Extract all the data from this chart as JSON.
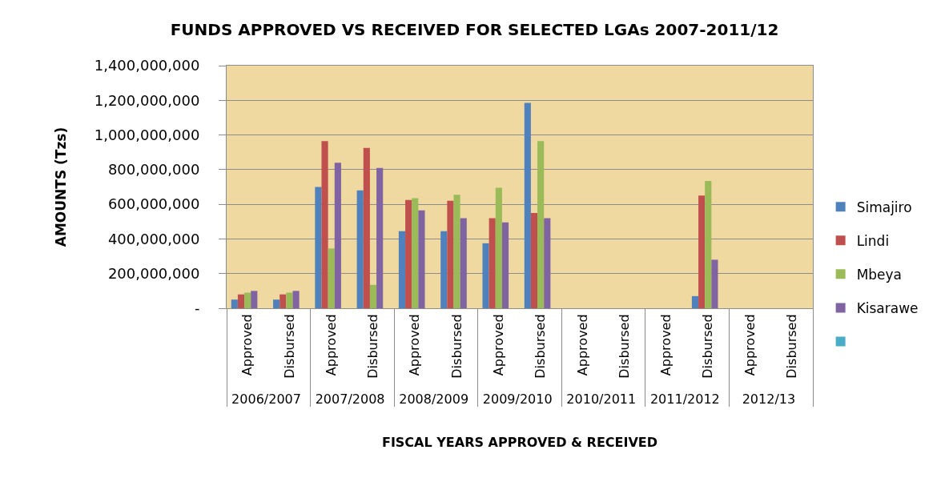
{
  "chart_data": {
    "type": "bar",
    "title": "FUNDS APPROVED VS RECEIVED FOR SELECTED LGAs 2007-2011/12",
    "xlabel": "FISCAL YEARS APPROVED & RECEIVED",
    "ylabel": "AMOUNTS (Tzs)",
    "categories": [
      "Approved",
      "Disbursed",
      "Approved",
      "Disbursed",
      "Approved",
      "Disbursed",
      "Approved",
      "Disbursed",
      "Approved",
      "Disbursed",
      "Approved",
      "Disbursed",
      "Approved",
      "Disbursed"
    ],
    "annotations": [
      "2006/2007",
      "2007/2008",
      "2008/2009",
      "2009/2010",
      "2010/2011",
      "2011/2012",
      "2012/13"
    ],
    "series": [
      {
        "name": "Simajiro",
        "color": "#4f81bd",
        "values": [
          50000000,
          50000000,
          700000000,
          680000000,
          445000000,
          445000000,
          375000000,
          1185000000,
          null,
          null,
          null,
          70000000,
          null,
          null
        ]
      },
      {
        "name": "Lindi",
        "color": "#c0504d",
        "values": [
          80000000,
          80000000,
          965000000,
          925000000,
          625000000,
          620000000,
          520000000,
          550000000,
          null,
          null,
          null,
          650000000,
          null,
          null
        ]
      },
      {
        "name": "Mbeya",
        "color": "#9bbb59",
        "values": [
          90000000,
          90000000,
          345000000,
          135000000,
          635000000,
          655000000,
          695000000,
          965000000,
          null,
          null,
          null,
          735000000,
          null,
          null
        ]
      },
      {
        "name": "Kisarawe",
        "color": "#8064a2",
        "values": [
          100000000,
          100000000,
          840000000,
          810000000,
          565000000,
          520000000,
          495000000,
          520000000,
          null,
          null,
          null,
          280000000,
          null,
          null
        ]
      },
      {
        "color": "#4bacc6",
        "values": [
          null,
          null,
          null,
          null,
          null,
          null,
          null,
          null,
          null,
          null,
          null,
          null,
          null,
          null
        ]
      }
    ],
    "ylim": [
      0,
      1400000000
    ],
    "yticks": [
      {
        "value": 0,
        "label": "-"
      },
      {
        "value": 200000000,
        "label": "200,000,000"
      },
      {
        "value": 400000000,
        "label": "400,000,000"
      },
      {
        "value": 600000000,
        "label": "600,000,000"
      },
      {
        "value": 800000000,
        "label": "800,000,000"
      },
      {
        "value": 1000000000,
        "label": "1,000,000,000"
      },
      {
        "value": 1200000000,
        "label": "1,200,000,000"
      },
      {
        "value": 1400000000,
        "label": "1,400,000,000"
      }
    ],
    "grid": "y",
    "legend": "right"
  }
}
